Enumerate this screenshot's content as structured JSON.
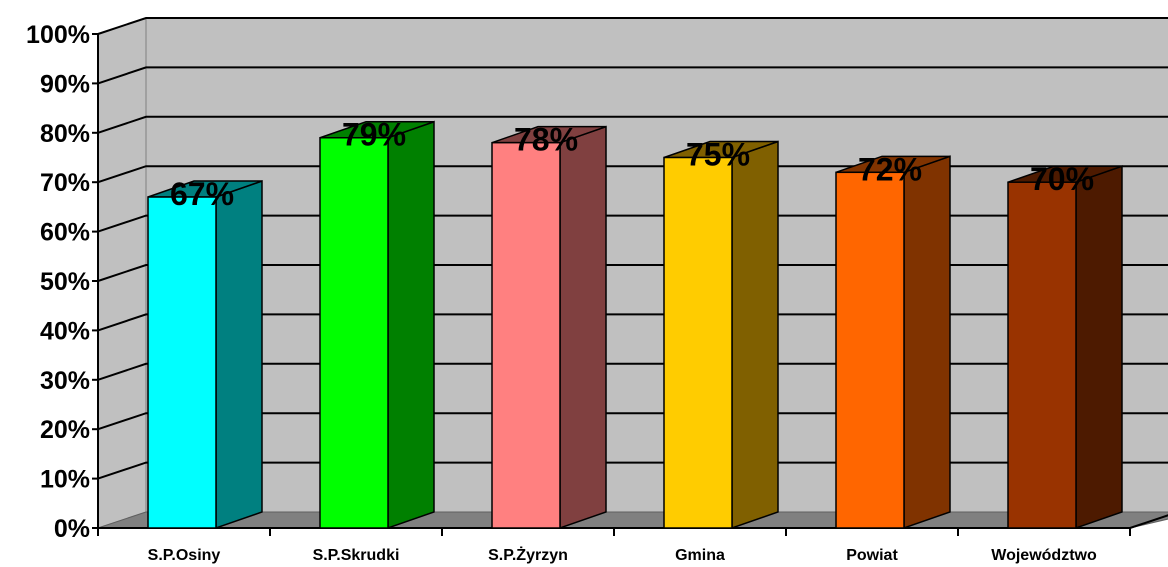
{
  "chart_data": {
    "type": "bar",
    "categories": [
      "S.P.Osiny",
      "S.P.Skrudki",
      "S.P.Żyrzyn",
      "Gmina",
      "Powiat",
      "Województwo"
    ],
    "values": [
      67,
      79,
      78,
      75,
      72,
      70
    ],
    "value_labels": [
      "67%",
      "79%",
      "78%",
      "75%",
      "72%",
      "70%"
    ],
    "y_tick_labels": [
      "0%",
      "10%",
      "20%",
      "30%",
      "40%",
      "50%",
      "60%",
      "70%",
      "80%",
      "90%",
      "100%"
    ],
    "ylim": [
      0,
      100
    ],
    "grid": true,
    "three_d": true,
    "title": "",
    "xlabel": "",
    "ylabel": "",
    "colors": {
      "front": [
        "#00FFFF",
        "#00FF00",
        "#FF8080",
        "#FFCC00",
        "#FF6600",
        "#993300"
      ],
      "side": [
        "#008080",
        "#008000",
        "#804040",
        "#806000",
        "#803300",
        "#4D1A00"
      ],
      "wall": "#C0C0C0",
      "floor": "#808080"
    }
  }
}
